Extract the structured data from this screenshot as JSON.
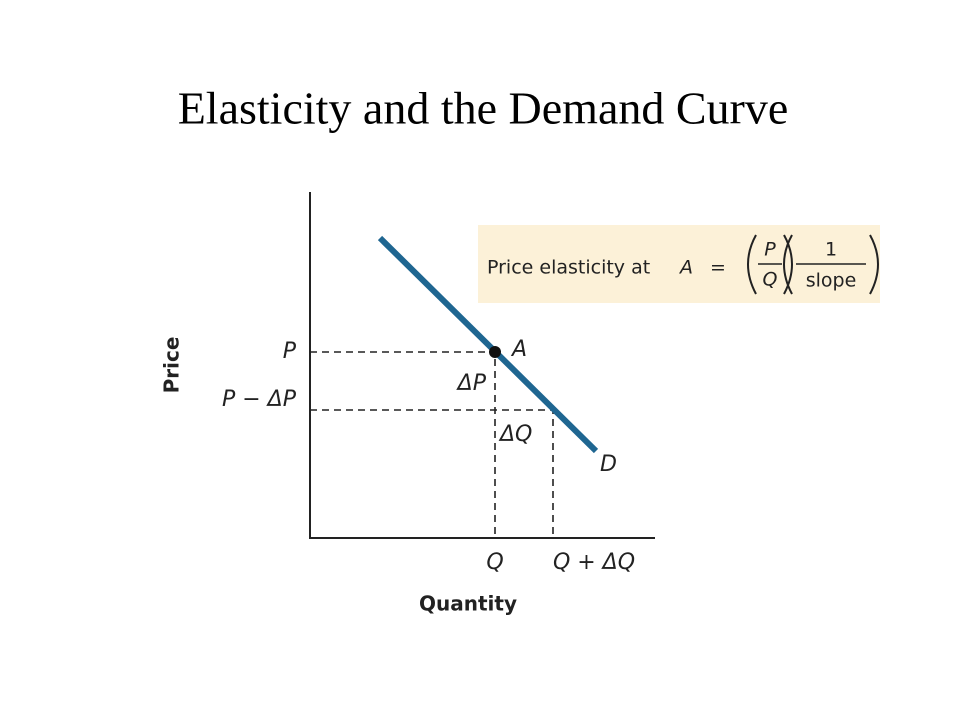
{
  "title": "Elasticity and the Demand Curve",
  "axes": {
    "y_label": "Price",
    "x_label": "Quantity"
  },
  "price_labels": [
    "P",
    "P − ΔP"
  ],
  "quantity_labels": [
    "Q",
    "Q + ΔQ"
  ],
  "point_label": "A",
  "change_labels": [
    "ΔP",
    "ΔQ"
  ],
  "curve_label": "D",
  "formula": {
    "text": "Price elasticity at",
    "point": "A",
    "equals": "=",
    "numerator_1": "P",
    "denominator_1": "Q",
    "numerator_2": "1",
    "denominator_2": "slope"
  }
}
